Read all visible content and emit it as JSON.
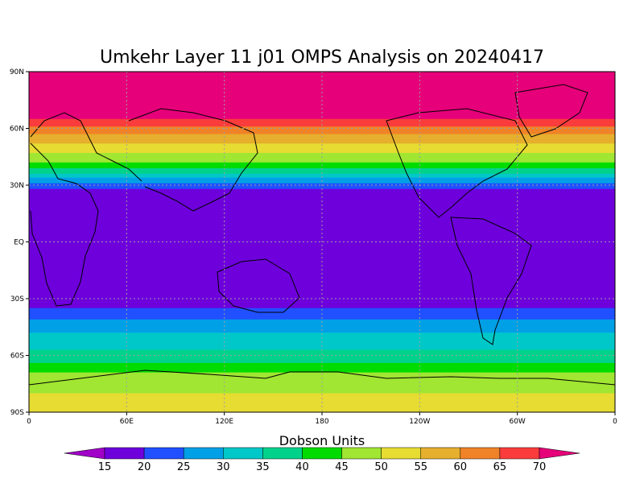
{
  "title": "Umkehr Layer 11 j01 OMPS Analysis on 20240417",
  "colorbar": {
    "label": "Dobson Units",
    "tick_labels": [
      "15",
      "20",
      "25",
      "30",
      "35",
      "40",
      "45",
      "50",
      "55",
      "60",
      "65",
      "70"
    ],
    "colors": [
      "#a000c8",
      "#6e00dc",
      "#2050ff",
      "#00a0e6",
      "#00c8c8",
      "#00d28c",
      "#00dc00",
      "#a0e632",
      "#e6dc32",
      "#e6af2d",
      "#f08228",
      "#fa3c3c",
      "#e6007a"
    ]
  },
  "chart_data": {
    "type": "heatmap",
    "title": "Umkehr Layer 11 j01 OMPS Analysis on 20240417",
    "units": "Dobson Units",
    "grid": true,
    "x_ticks": [
      "0",
      "60E",
      "120E",
      "180",
      "120W",
      "60W",
      "0"
    ],
    "y_ticks": [
      "90N",
      "60N",
      "30N",
      "EQ",
      "30S",
      "60S",
      "90S"
    ],
    "lon_range": [
      0,
      360
    ],
    "lat_range": [
      -90,
      90
    ],
    "levels": [
      15,
      20,
      25,
      30,
      35,
      40,
      45,
      50,
      55,
      60,
      65,
      70
    ],
    "zonal_profile": {
      "lat": [
        90,
        80,
        70,
        65,
        60,
        55,
        50,
        45,
        40,
        35,
        30,
        25,
        0,
        -25,
        -30,
        -35,
        -40,
        -45,
        -50,
        -55,
        -60,
        -65,
        -70,
        -75,
        -80,
        -90
      ],
      "value": [
        72,
        72,
        72,
        70,
        64,
        58,
        52,
        48,
        42,
        33,
        22,
        16,
        15,
        15,
        16,
        20,
        24,
        28,
        31,
        33,
        37,
        41,
        46,
        49,
        50,
        50
      ]
    }
  }
}
